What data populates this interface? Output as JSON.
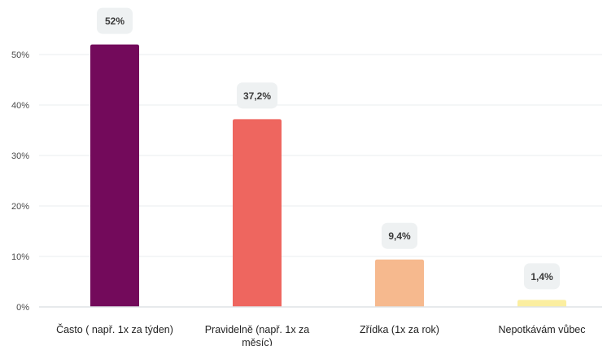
{
  "chart_data": {
    "type": "bar",
    "categories": [
      [
        "Často ( např. 1x za týden)"
      ],
      [
        "Pravidelně (např. 1x za",
        "měsíc)"
      ],
      [
        "Zřídka (1x za rok)"
      ],
      [
        "Nepotkávám vůbec"
      ]
    ],
    "values": [
      52,
      37.2,
      9.4,
      1.4
    ],
    "value_labels": [
      "52%",
      "37,2%",
      "9,4%",
      "1,4%"
    ],
    "colors": [
      "#730a5b",
      "#ee665f",
      "#f6b98e",
      "#fbeea0"
    ],
    "ylim": [
      0,
      55
    ],
    "yticks": [
      0,
      10,
      20,
      30,
      40,
      50
    ],
    "ytick_labels": [
      "0%",
      "10%",
      "20%",
      "30%",
      "40%",
      "50%"
    ],
    "grid": true,
    "legend": "none",
    "title": "",
    "xlabel": "",
    "ylabel": ""
  }
}
